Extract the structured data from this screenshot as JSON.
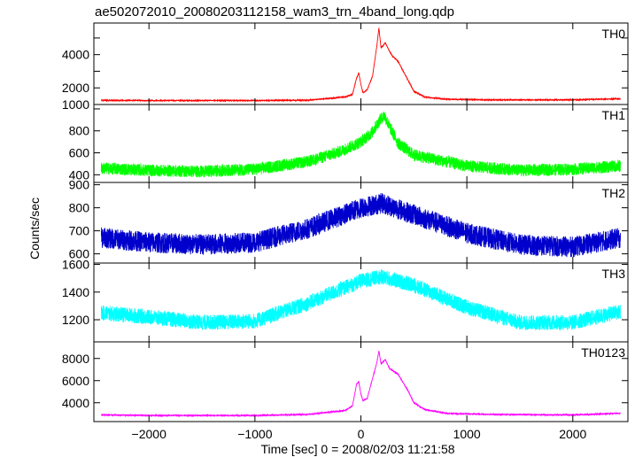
{
  "chart_data": {
    "type": "line",
    "title": "ae502072010_20080203112158_wam3_trn_4band_long.qdp",
    "xlabel": "Time [sec] 0 = 2008/02/03 11:21:58",
    "ylabel": "Counts/sec",
    "xlim": [
      -2520,
      2520
    ],
    "x_ticks": [
      -2000,
      -1000,
      0,
      1000,
      2000
    ],
    "x_tick_labels": [
      "−2000",
      "−1000",
      "0",
      "1000",
      "2000"
    ],
    "grid": false,
    "panels": [
      {
        "name": "TH0",
        "color": "#ff0000",
        "ylim": [
          1000,
          5900
        ],
        "y_ticks": [
          1000,
          2000,
          3000,
          4000,
          5000
        ],
        "y_tick_labels": [
          "1000",
          "2000",
          "4000"
        ],
        "y_tick_label_values": [
          1000,
          2000,
          4000
        ],
        "noise": 25,
        "x": [
          -2450,
          -2000,
          -1000,
          -500,
          -150,
          -80,
          -40,
          -20,
          0,
          20,
          60,
          110,
          150,
          170,
          190,
          230,
          270,
          300,
          350,
          400,
          450,
          500,
          600,
          800,
          1200,
          2000,
          2450
        ],
        "values": [
          1250,
          1240,
          1240,
          1260,
          1450,
          1600,
          2600,
          2900,
          2200,
          1700,
          1900,
          2700,
          4500,
          5600,
          4400,
          4700,
          4200,
          3900,
          3600,
          3000,
          2400,
          1800,
          1450,
          1320,
          1280,
          1280,
          1350
        ]
      },
      {
        "name": "TH1",
        "color": "#00ff00",
        "ylim": [
          330,
          1040
        ],
        "y_ticks": [
          400,
          600,
          800,
          1000
        ],
        "y_tick_labels": [
          "400",
          "600",
          "800"
        ],
        "y_tick_label_values": [
          400,
          600,
          800
        ],
        "noise": 55,
        "x": [
          -2450,
          -2000,
          -1500,
          -1000,
          -500,
          -200,
          0,
          100,
          180,
          220,
          280,
          350,
          500,
          1000,
          1500,
          2000,
          2450
        ],
        "values": [
          460,
          440,
          430,
          450,
          520,
          610,
          700,
          780,
          900,
          940,
          820,
          690,
          580,
          480,
          440,
          450,
          480
        ]
      },
      {
        "name": "TH2",
        "color": "#0000cc",
        "ylim": [
          560,
          910
        ],
        "y_ticks": [
          600,
          700,
          800,
          900
        ],
        "y_tick_labels": [
          "600",
          "700",
          "800",
          "900"
        ],
        "y_tick_label_values": [
          600,
          700,
          800,
          900
        ],
        "noise": 45,
        "x": [
          -2450,
          -2000,
          -1500,
          -1000,
          -500,
          0,
          200,
          500,
          1000,
          1500,
          2000,
          2450
        ],
        "values": [
          670,
          650,
          640,
          650,
          710,
          800,
          820,
          770,
          690,
          640,
          630,
          670
        ]
      },
      {
        "name": "TH3",
        "color": "#00ffff",
        "ylim": [
          1040,
          1610
        ],
        "y_ticks": [
          1200,
          1400,
          1600
        ],
        "y_tick_labels": [
          "1200",
          "1400",
          "1600"
        ],
        "y_tick_label_values": [
          1200,
          1400,
          1600
        ],
        "noise": 55,
        "x": [
          -2450,
          -2000,
          -1500,
          -1000,
          -500,
          0,
          200,
          500,
          1000,
          1500,
          2000,
          2450
        ],
        "values": [
          1250,
          1220,
          1180,
          1190,
          1320,
          1480,
          1510,
          1450,
          1290,
          1180,
          1180,
          1260
        ]
      },
      {
        "name": "TH0123",
        "color": "#ff00ff",
        "ylim": [
          2300,
          9500
        ],
        "y_ticks": [
          4000,
          6000,
          8000
        ],
        "y_tick_labels": [
          "4000",
          "6000",
          "8000"
        ],
        "y_tick_label_values": [
          4000,
          6000,
          8000
        ],
        "noise": 40,
        "x": [
          -2450,
          -2000,
          -1000,
          -500,
          -150,
          -80,
          -40,
          -20,
          0,
          20,
          60,
          110,
          150,
          170,
          190,
          230,
          270,
          300,
          350,
          400,
          450,
          500,
          600,
          800,
          1200,
          2000,
          2450
        ],
        "values": [
          2900,
          2850,
          2850,
          2950,
          3300,
          3700,
          5700,
          5900,
          4800,
          4200,
          4400,
          6200,
          7600,
          8700,
          7500,
          7900,
          7100,
          6900,
          6600,
          5800,
          5000,
          4000,
          3400,
          3050,
          2950,
          2900,
          3050
        ]
      }
    ]
  }
}
